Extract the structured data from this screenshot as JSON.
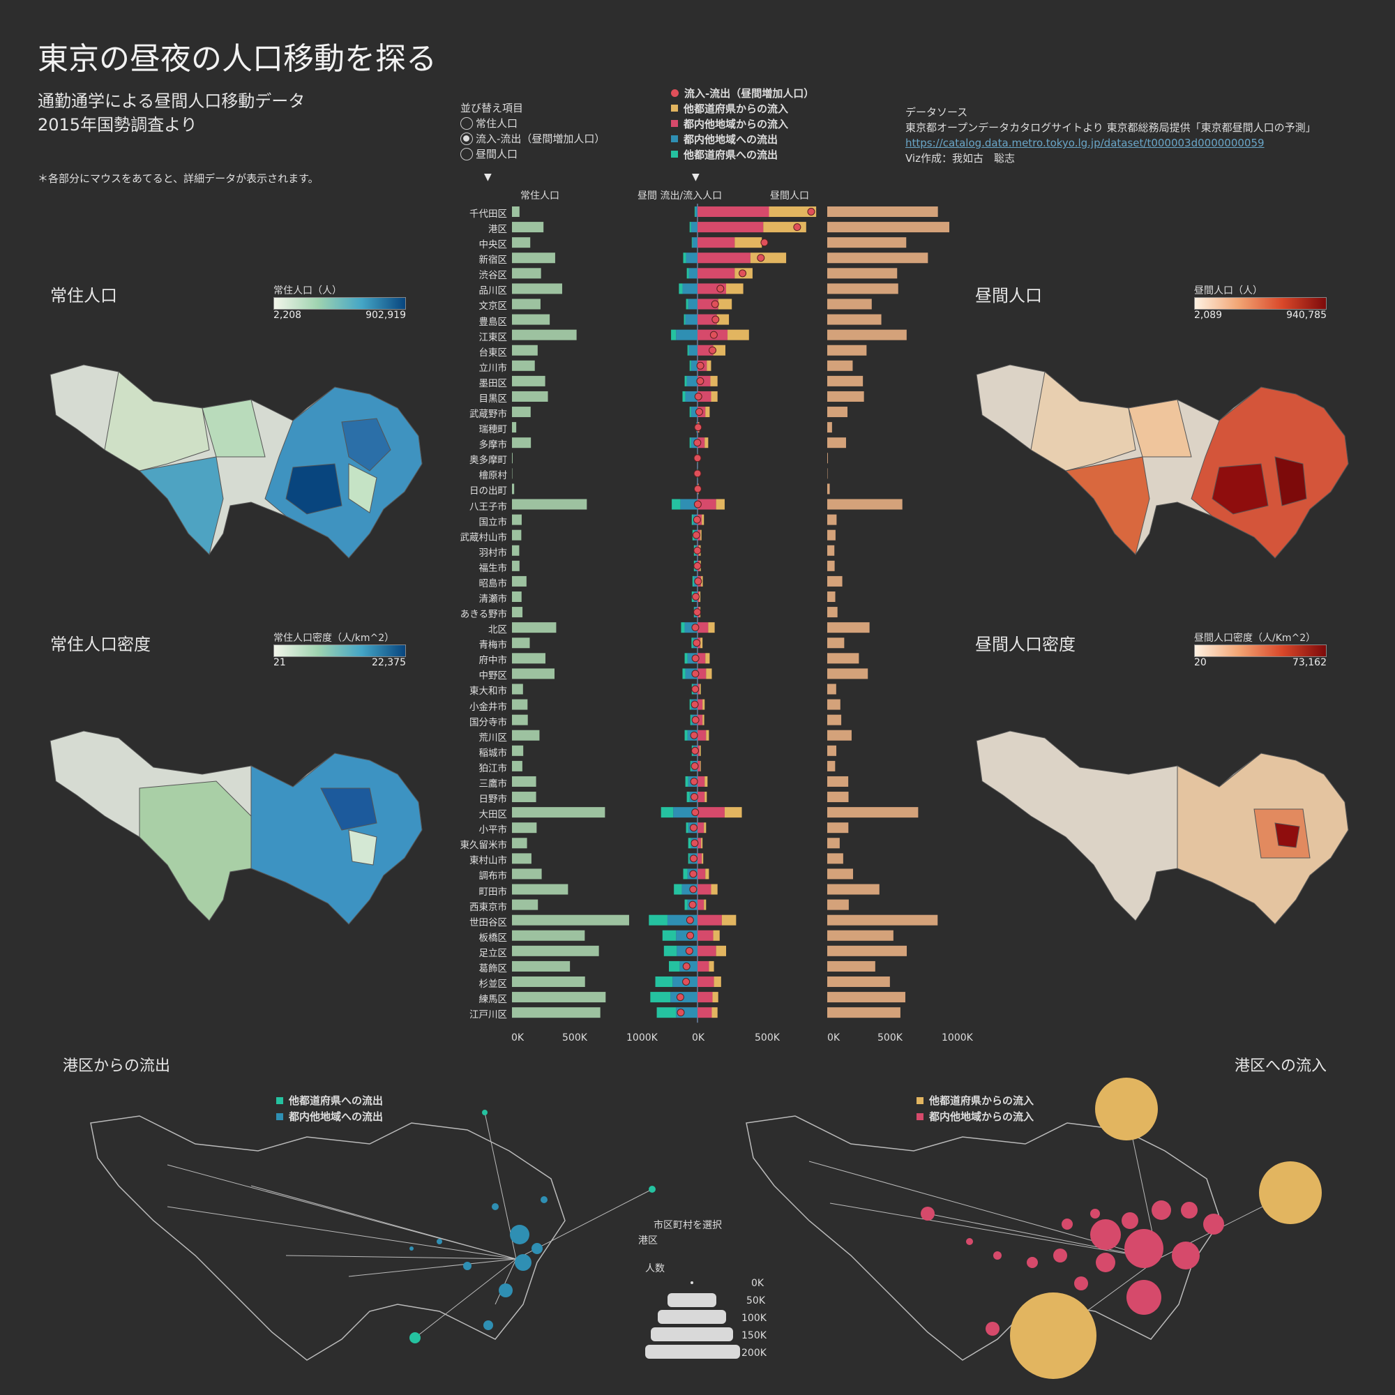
{
  "title": "東京の昼夜の人口移動を探る",
  "subtitle_lines": [
    "通勤通学による昼間人口移動データ",
    "2015年国勢調査より"
  ],
  "note": "＊各部分にマウスをあてると、詳細データが表示されます。",
  "sort": {
    "title": "並び替え項目",
    "options": [
      "常住人口",
      "流入-流出（昼間増加人口）",
      "昼間人口"
    ],
    "selected": 1
  },
  "legend": {
    "net": "流入-流出（昼間増加人口）",
    "items": [
      {
        "label": "他都道府県からの流入",
        "color": "#e2b560"
      },
      {
        "label": "都内他地域からの流入",
        "color": "#d64a6b"
      },
      {
        "label": "都内他地域への流出",
        "color": "#2f8fb3"
      },
      {
        "label": "他都道府県への流出",
        "color": "#25c2a0"
      }
    ],
    "net_color": "#e0505a"
  },
  "source": {
    "heading": "データソース",
    "text": "東京都オープンデータカタログサイトより 東京都総務局提供「東京都昼間人口の予測」",
    "url": "https://catalog.data.metro.tokyo.lg.jp/dataset/t000003d0000000059",
    "author": "Viz作成：我如古　聡志"
  },
  "maps": {
    "resident": {
      "title": "常住人口",
      "scale_label": "常住人口（人）",
      "min": "2,208",
      "max": "902,919"
    },
    "daytime": {
      "title": "昼間人口",
      "scale_label": "昼間人口（人）",
      "min": "2,089",
      "max": "940,785"
    },
    "resident_density": {
      "title": "常住人口密度",
      "scale_label": "常住人口密度（人/km^2）",
      "min": "21",
      "max": "22,375"
    },
    "daytime_density": {
      "title": "昼間人口密度",
      "scale_label": "昼間人口密度（人/Km^2）",
      "min": "20",
      "max": "73,162"
    }
  },
  "columns": {
    "resident": "常住人口",
    "flow": "昼間 流出/流入人口",
    "daytime": "昼間人口",
    "ticks_left": [
      "0K",
      "500K",
      "1000K"
    ],
    "ticks_mid": [
      "0K",
      "500K"
    ],
    "ticks_right": [
      "0K",
      "500K",
      "1000K"
    ]
  },
  "chart_data": {
    "type": "bar",
    "categories": [
      "千代田区",
      "港区",
      "中央区",
      "新宿区",
      "渋谷区",
      "品川区",
      "文京区",
      "豊島区",
      "江東区",
      "台東区",
      "立川市",
      "墨田区",
      "目黒区",
      "武蔵野市",
      "瑞穂町",
      "多摩市",
      "奥多摩町",
      "檜原村",
      "日の出町",
      "八王子市",
      "国立市",
      "武蔵村山市",
      "羽村市",
      "福生市",
      "昭島市",
      "清瀬市",
      "あきる野市",
      "北区",
      "青梅市",
      "府中市",
      "中野区",
      "東大和市",
      "小金井市",
      "国分寺市",
      "荒川区",
      "稲城市",
      "狛江市",
      "三鷹市",
      "日野市",
      "大田区",
      "小平市",
      "東久留米市",
      "東村山市",
      "調布市",
      "町田市",
      "西東京市",
      "世田谷区",
      "板橋区",
      "足立区",
      "葛飾区",
      "杉並区",
      "練馬区",
      "江戸川区"
    ],
    "series": [
      {
        "name": "常住人口",
        "values": [
          58,
          243,
          141,
          333,
          224,
          387,
          220,
          291,
          498,
          198,
          176,
          256,
          277,
          144,
          33,
          146,
          5,
          2,
          17,
          577,
          75,
          72,
          56,
          58,
          112,
          74,
          81,
          341,
          137,
          258,
          328,
          85,
          120,
          122,
          212,
          87,
          80,
          186,
          186,
          717,
          190,
          116,
          150,
          229,
          432,
          200,
          903,
          561,
          670,
          447,
          563,
          722,
          681
        ]
      },
      {
        "name": "昼間人口",
        "values": [
          853,
          941,
          609,
          776,
          539,
          547,
          343,
          417,
          612,
          303,
          196,
          275,
          283,
          156,
          37,
          145,
          5,
          2,
          19,
          579,
          72,
          64,
          55,
          57,
          116,
          62,
          79,
          326,
          131,
          244,
          313,
          69,
          101,
          108,
          188,
          70,
          61,
          162,
          164,
          701,
          163,
          96,
          123,
          199,
          402,
          166,
          851,
          510,
          613,
          370,
          483,
          602,
          564
        ]
      },
      {
        "name": "他都道府県からの流入",
        "values": [
          330,
          300,
          190,
          250,
          125,
          120,
          95,
          85,
          150,
          85,
          30,
          50,
          45,
          30,
          5,
          25,
          1,
          0,
          3,
          60,
          15,
          8,
          10,
          8,
          12,
          8,
          5,
          45,
          15,
          30,
          40,
          8,
          15,
          12,
          20,
          8,
          5,
          20,
          15,
          120,
          15,
          10,
          10,
          25,
          45,
          15,
          100,
          45,
          70,
          35,
          50,
          40,
          40
        ]
      },
      {
        "name": "都内他地域からの流入",
        "values": [
          500,
          460,
          260,
          370,
          260,
          200,
          145,
          135,
          210,
          110,
          65,
          90,
          95,
          55,
          7,
          50,
          1,
          0,
          6,
          130,
          30,
          20,
          12,
          15,
          25,
          12,
          15,
          75,
          20,
          55,
          60,
          15,
          35,
          35,
          60,
          15,
          18,
          50,
          50,
          190,
          45,
          25,
          30,
          55,
          95,
          45,
          170,
          110,
          130,
          80,
          115,
          105,
          100
        ]
      },
      {
        "name": "都内他地域への流出",
        "values": [
          -15,
          -45,
          -35,
          -80,
          -60,
          -105,
          -65,
          -85,
          -150,
          -60,
          -45,
          -75,
          -85,
          -45,
          -5,
          -45,
          -1,
          0,
          -3,
          -120,
          -30,
          -20,
          -15,
          -15,
          -25,
          -25,
          -20,
          -90,
          -30,
          -70,
          -85,
          -30,
          -45,
          -40,
          -70,
          -30,
          -40,
          -65,
          -55,
          -170,
          -65,
          -45,
          -55,
          -70,
          -110,
          -70,
          -210,
          -150,
          -145,
          -125,
          -175,
          -190,
          -150
        ]
      },
      {
        "name": "他都道府県への流出",
        "values": [
          -5,
          -10,
          -5,
          -20,
          -15,
          -25,
          -15,
          -10,
          -35,
          -10,
          -10,
          -15,
          -20,
          -10,
          -2,
          -10,
          0,
          0,
          -2,
          -60,
          -10,
          -15,
          -10,
          -10,
          -10,
          -15,
          -5,
          -25,
          -12,
          -20,
          -20,
          -10,
          -10,
          -10,
          -20,
          -10,
          -10,
          -20,
          -20,
          -85,
          -15,
          -20,
          -10,
          -30,
          -55,
          -20,
          -130,
          -95,
          -90,
          -75,
          -120,
          -140,
          -135
        ]
      },
      {
        "name": "流入-流出（昼間増加人口）",
        "values": [
          795,
          697,
          468,
          443,
          315,
          160,
          123,
          126,
          114,
          105,
          20,
          19,
          6,
          12,
          4,
          -1,
          0,
          0,
          2,
          2,
          -3,
          -8,
          -1,
          -1,
          4,
          -12,
          -2,
          -15,
          -6,
          -14,
          -15,
          -16,
          -19,
          -14,
          -24,
          -17,
          -19,
          -24,
          -22,
          -16,
          -27,
          -20,
          -27,
          -30,
          -30,
          -34,
          -52,
          -51,
          -57,
          -77,
          -80,
          -120,
          -117
        ]
      }
    ],
    "xlim_resident": [
      0,
      1000
    ],
    "xlim_flow": [
      -200,
      900
    ],
    "xlim_daytime": [
      0,
      1000
    ],
    "unit": "K"
  },
  "bottom": {
    "outflow_title": "港区からの流出",
    "inflow_title": "港区への流入",
    "outflow_legend": [
      {
        "label": "他都道府県への流出",
        "color": "#25c2a0"
      },
      {
        "label": "都内他地域への流出",
        "color": "#2f8fb3"
      }
    ],
    "inflow_legend": [
      {
        "label": "他都道府県からの流入",
        "color": "#e2b560"
      },
      {
        "label": "都内他地域からの流入",
        "color": "#d64a6b"
      }
    ],
    "select_label": "市区町村を選択",
    "selected": "港区",
    "size_title": "人数",
    "size_values": [
      "0K",
      "50K",
      "100K",
      "150K",
      "200K"
    ]
  }
}
